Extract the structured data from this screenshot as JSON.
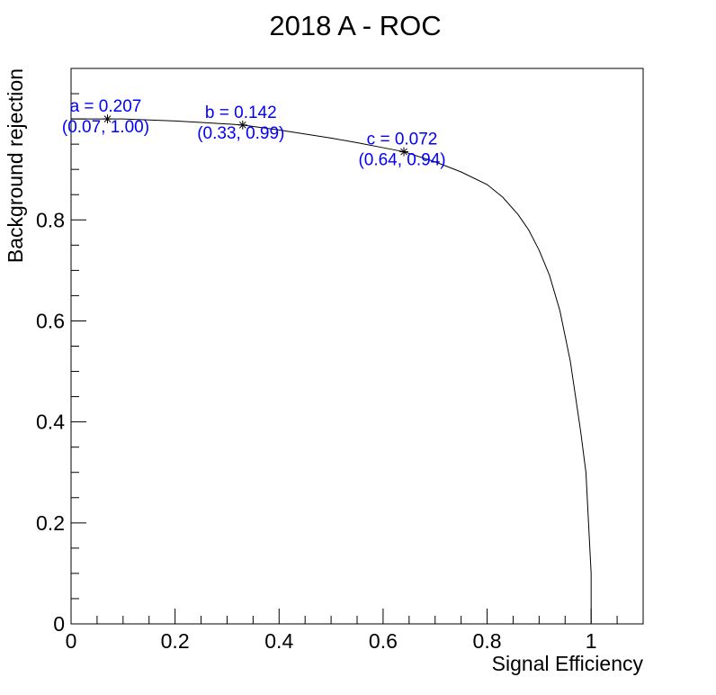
{
  "chart_data": {
    "type": "line",
    "title": "2018 A - ROC",
    "xlabel": "Signal Efficiency",
    "ylabel": "Background rejection",
    "xlim": [
      0,
      1.1
    ],
    "ylim": [
      0,
      1.1
    ],
    "x_ticks": [
      0,
      0.2,
      0.4,
      0.6,
      0.8,
      1
    ],
    "x_tick_labels": [
      "0",
      "0.2",
      "0.4",
      "0.6",
      "0.8",
      "1"
    ],
    "y_ticks": [
      0,
      0.2,
      0.4,
      0.6,
      0.8
    ],
    "y_tick_labels": [
      "0",
      "0.2",
      "0.4",
      "0.6",
      "0.8"
    ],
    "grid": false,
    "line_color": "#000000",
    "annotation_color": "#0000ff",
    "series": [
      {
        "x": [
          0.0,
          0.02,
          0.05,
          0.07,
          0.1,
          0.15,
          0.2,
          0.25,
          0.3,
          0.33,
          0.4,
          0.45,
          0.5,
          0.55,
          0.6,
          0.64,
          0.7,
          0.75,
          0.8,
          0.83,
          0.86,
          0.88,
          0.9,
          0.92,
          0.94,
          0.95,
          0.96,
          0.97,
          0.98,
          0.99,
          0.995,
          1.0,
          1.0
        ],
        "y": [
          1.0,
          1.0,
          1.0,
          1.0,
          1.0,
          0.998,
          0.996,
          0.993,
          0.99,
          0.988,
          0.978,
          0.97,
          0.962,
          0.953,
          0.943,
          0.935,
          0.915,
          0.895,
          0.87,
          0.845,
          0.81,
          0.78,
          0.74,
          0.69,
          0.62,
          0.57,
          0.52,
          0.45,
          0.38,
          0.3,
          0.2,
          0.1,
          0.0
        ]
      }
    ],
    "annotations": [
      {
        "x": 0.07,
        "y": 1.0,
        "label": "a = 0.207",
        "coords": "(0.07, 1.00)"
      },
      {
        "x": 0.33,
        "y": 0.988,
        "label": "b = 0.142",
        "coords": "(0.33, 0.99)"
      },
      {
        "x": 0.64,
        "y": 0.935,
        "label": "c = 0.072",
        "coords": "(0.64, 0.94)"
      }
    ]
  }
}
